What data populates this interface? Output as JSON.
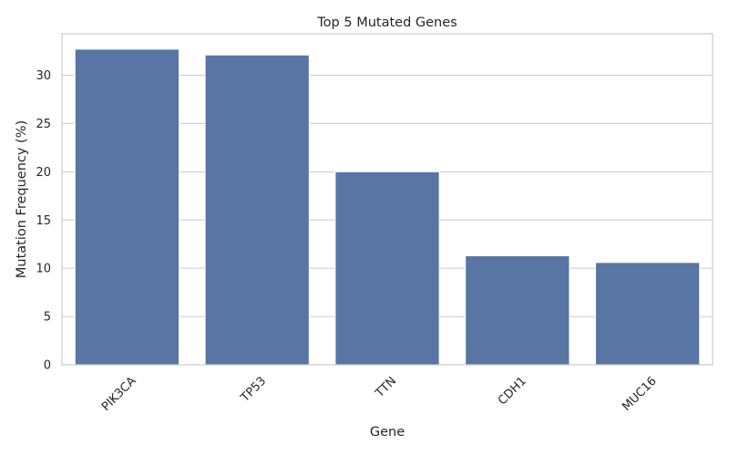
{
  "chart_data": {
    "type": "bar",
    "title": "Top 5 Mutated Genes",
    "xlabel": "Gene",
    "ylabel": "Mutation Frequency (%)",
    "categories": [
      "PIK3CA",
      "TP53",
      "TTN",
      "CDH1",
      "MUC16"
    ],
    "values": [
      32.7,
      32.1,
      20.0,
      11.3,
      10.6
    ],
    "ylim": [
      0,
      34.3
    ],
    "yticks": [
      0,
      5,
      10,
      15,
      20,
      25,
      30
    ],
    "grid": true,
    "legend": "none",
    "bar_color": "#5875a4",
    "grid_color": "#cccccc"
  }
}
